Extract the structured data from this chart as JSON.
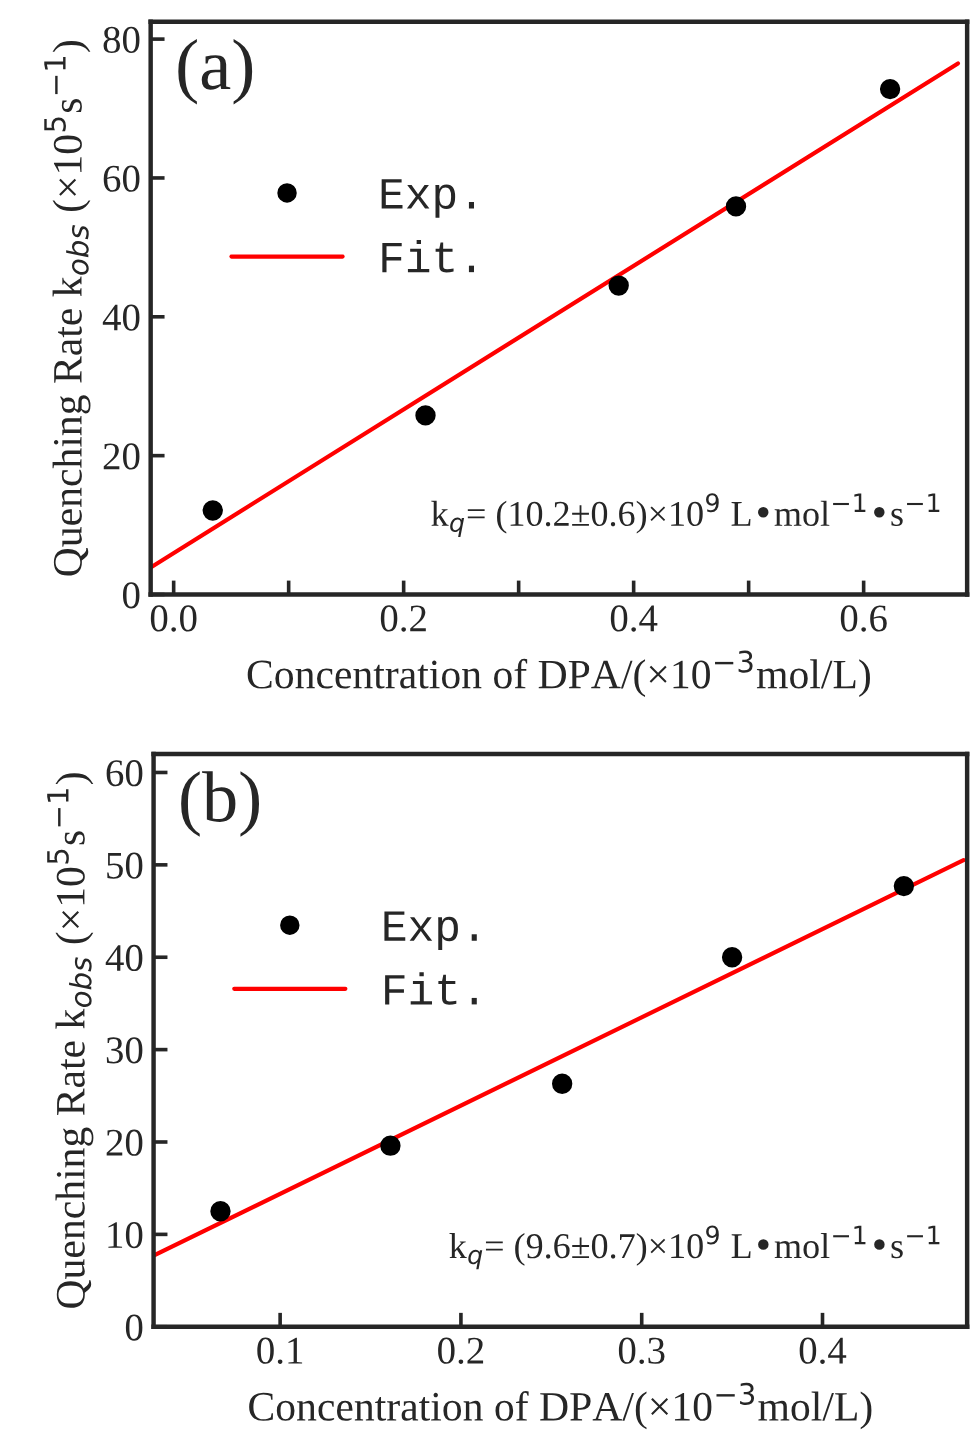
{
  "chart_data": [
    {
      "type": "scatter",
      "xlabel": "Concentration of DPA/(×10$^{−3}$mol/L)",
      "ylabel": "Quenching Rate k$_{obs}$ (×10$^{5}$s$^{−1}$)",
      "annotations": [
        "(a)",
        "k$_{q}$= (10.2±0.6)×10$^{9}$ L•mol$^{−1}$•s$^{−1}$"
      ],
      "series": [
        {
          "name": "Exp.",
          "color": "#000000",
          "marker": "circle",
          "x": [
            0.034,
            0.219,
            0.387,
            0.489,
            0.623
          ],
          "values": [
            12.1,
            25.8,
            44.5,
            55.9,
            72.8
          ]
        },
        {
          "name": "Fit.",
          "type": "line",
          "color": "#ff0000",
          "line_style": "solid",
          "x": [
            -0.02,
            0.682
          ],
          "values": [
            3.9,
            76.5
          ]
        }
      ],
      "xlim": [
        -0.02,
        0.69
      ],
      "ylim": [
        0,
        82.5
      ],
      "xticks": [
        {
          "value": 0.0,
          "label": "0.0"
        },
        {
          "value": 0.1,
          "label": null
        },
        0.2,
        {
          "value": 0.3,
          "label": null
        },
        0.4,
        {
          "value": 0.5,
          "label": null
        },
        0.6
      ],
      "yticks": [
        0,
        20,
        40,
        60,
        80
      ],
      "legend": "top left",
      "grid": false
    },
    {
      "type": "scatter",
      "xlabel": "Concentration of DPA/(×10$^{−3}$mol/L)",
      "ylabel": "Quenching Rate k$_{obs}$ (×10$^{5}$s$^{−1}$)",
      "annotations": [
        "(b)",
        "k$_{q}$= (9.6±0.7)×10$^{9}$ L•mol$^{−1}$•s$^{−1}$"
      ],
      "series": [
        {
          "name": "Exp.",
          "color": "#000000",
          "marker": "circle",
          "x": [
            0.067,
            0.161,
            0.256,
            0.35,
            0.445
          ],
          "values": [
            12.5,
            19.6,
            26.3,
            40.0,
            47.7
          ]
        },
        {
          "name": "Fit.",
          "type": "line",
          "color": "#ff0000",
          "line_style": "solid",
          "x": [
            0.03,
            0.478
          ],
          "values": [
            7.7,
            50.5
          ]
        }
      ],
      "xlim": [
        0.03,
        0.48
      ],
      "ylim": [
        0,
        62
      ],
      "xticks": [
        0.1,
        0.2,
        0.3,
        0.4
      ],
      "yticks": [
        0,
        10,
        20,
        30,
        40,
        50,
        60
      ],
      "legend": "top left",
      "grid": false
    }
  ]
}
